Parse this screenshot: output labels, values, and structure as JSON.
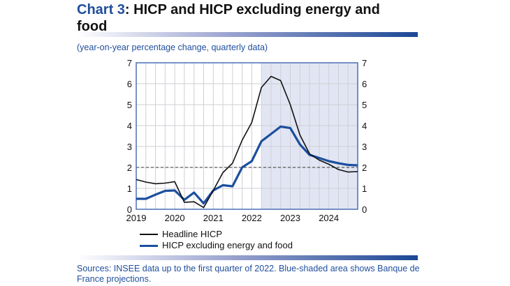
{
  "header": {
    "chart_number": "Chart 3",
    "title_rest": ": HICP and HICP excluding energy and food"
  },
  "subtitle": "(year-on-year percentage change, quarterly data)",
  "sources": "Sources: INSEE data up to the first quarter of 2022. Blue-shaded area shows Banque de France projections.",
  "colors": {
    "headline": "#111111",
    "core": "#1b4f9e",
    "shade": "#e2e5f3",
    "axis": "#4a6fb5"
  },
  "chart_data": {
    "type": "line",
    "title": "HICP and HICP excluding energy and food",
    "xlabel": "",
    "ylabel": "",
    "x_ticks": [
      "2019",
      "2020",
      "2021",
      "2022",
      "2023",
      "2024"
    ],
    "y_ticks": [
      "0",
      "1",
      "2",
      "3",
      "4",
      "5",
      "6",
      "7"
    ],
    "ylim": [
      0,
      7
    ],
    "reference_line": 2,
    "projection_start_index": 13,
    "quarters": 24,
    "series": [
      {
        "name": "Headline HICP",
        "values": [
          1.42,
          1.3,
          1.22,
          1.25,
          1.32,
          0.33,
          0.36,
          0.08,
          0.9,
          1.75,
          2.2,
          3.3,
          4.15,
          5.82,
          6.35,
          6.15,
          5.0,
          3.55,
          2.65,
          2.35,
          2.15,
          1.9,
          1.78,
          1.8
        ]
      },
      {
        "name": "HICP excluding energy and food",
        "values": [
          0.5,
          0.5,
          0.7,
          0.88,
          0.9,
          0.45,
          0.8,
          0.28,
          0.9,
          1.15,
          1.1,
          2.0,
          2.3,
          3.25,
          3.6,
          3.95,
          3.88,
          3.1,
          2.6,
          2.45,
          2.3,
          2.2,
          2.12,
          2.1
        ]
      }
    ]
  }
}
